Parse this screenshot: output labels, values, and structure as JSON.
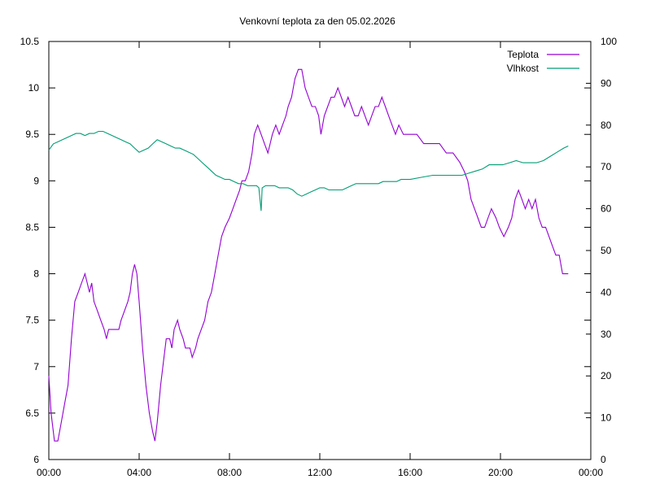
{
  "chart_data": {
    "type": "line",
    "title": "Venkovní teplota za den 05.02.2026",
    "xlabel": "",
    "ylabel": "",
    "y2label": "",
    "x_ticks": [
      "00:00",
      "04:00",
      "08:00",
      "12:00",
      "16:00",
      "20:00",
      "00:00"
    ],
    "xlim": [
      0,
      24
    ],
    "ylim": [
      6,
      10.5
    ],
    "y_ticks": [
      "6",
      "6.5",
      "7",
      "7.5",
      "8",
      "8.5",
      "9",
      "9.5",
      "10",
      "10.5"
    ],
    "y2lim": [
      0,
      100
    ],
    "y2_ticks": [
      "0",
      "10",
      "20",
      "30",
      "40",
      "50",
      "60",
      "70",
      "80",
      "90",
      "100"
    ],
    "grid": false,
    "legend_position": "top-right",
    "series": [
      {
        "name": "Teplota",
        "axis": "left",
        "color": "#9400d3",
        "points": [
          [
            0,
            6.9
          ],
          [
            0.1,
            6.5
          ],
          [
            0.25,
            6.2
          ],
          [
            0.4,
            6.2
          ],
          [
            0.55,
            6.4
          ],
          [
            0.7,
            6.6
          ],
          [
            0.85,
            6.8
          ],
          [
            1.0,
            7.3
          ],
          [
            1.15,
            7.7
          ],
          [
            1.3,
            7.8
          ],
          [
            1.45,
            7.9
          ],
          [
            1.6,
            8.0
          ],
          [
            1.7,
            7.9
          ],
          [
            1.8,
            7.8
          ],
          [
            1.9,
            7.9
          ],
          [
            2.0,
            7.7
          ],
          [
            2.15,
            7.6
          ],
          [
            2.3,
            7.5
          ],
          [
            2.45,
            7.4
          ],
          [
            2.55,
            7.3
          ],
          [
            2.65,
            7.4
          ],
          [
            2.9,
            7.4
          ],
          [
            3.1,
            7.4
          ],
          [
            3.2,
            7.5
          ],
          [
            3.35,
            7.6
          ],
          [
            3.5,
            7.7
          ],
          [
            3.6,
            7.8
          ],
          [
            3.7,
            8.0
          ],
          [
            3.8,
            8.1
          ],
          [
            3.9,
            8.0
          ],
          [
            4.0,
            7.7
          ],
          [
            4.15,
            7.2
          ],
          [
            4.3,
            6.8
          ],
          [
            4.45,
            6.5
          ],
          [
            4.6,
            6.3
          ],
          [
            4.7,
            6.2
          ],
          [
            4.8,
            6.4
          ],
          [
            4.95,
            6.8
          ],
          [
            5.1,
            7.1
          ],
          [
            5.2,
            7.3
          ],
          [
            5.35,
            7.3
          ],
          [
            5.45,
            7.2
          ],
          [
            5.55,
            7.4
          ],
          [
            5.7,
            7.5
          ],
          [
            5.8,
            7.4
          ],
          [
            5.95,
            7.3
          ],
          [
            6.05,
            7.2
          ],
          [
            6.25,
            7.2
          ],
          [
            6.35,
            7.1
          ],
          [
            6.5,
            7.2
          ],
          [
            6.6,
            7.3
          ],
          [
            6.75,
            7.4
          ],
          [
            6.9,
            7.5
          ],
          [
            7.05,
            7.7
          ],
          [
            7.2,
            7.8
          ],
          [
            7.35,
            8.0
          ],
          [
            7.5,
            8.2
          ],
          [
            7.65,
            8.4
          ],
          [
            7.8,
            8.5
          ],
          [
            8.0,
            8.6
          ],
          [
            8.15,
            8.7
          ],
          [
            8.3,
            8.8
          ],
          [
            8.45,
            8.9
          ],
          [
            8.55,
            9.0
          ],
          [
            8.7,
            9.0
          ],
          [
            8.85,
            9.1
          ],
          [
            9.0,
            9.3
          ],
          [
            9.1,
            9.5
          ],
          [
            9.25,
            9.6
          ],
          [
            9.4,
            9.5
          ],
          [
            9.55,
            9.4
          ],
          [
            9.7,
            9.3
          ],
          [
            9.8,
            9.4
          ],
          [
            9.9,
            9.5
          ],
          [
            10.05,
            9.6
          ],
          [
            10.2,
            9.5
          ],
          [
            10.35,
            9.6
          ],
          [
            10.5,
            9.7
          ],
          [
            10.6,
            9.8
          ],
          [
            10.75,
            9.9
          ],
          [
            10.9,
            10.1
          ],
          [
            11.05,
            10.2
          ],
          [
            11.2,
            10.2
          ],
          [
            11.35,
            10.0
          ],
          [
            11.5,
            9.9
          ],
          [
            11.65,
            9.8
          ],
          [
            11.8,
            9.8
          ],
          [
            11.95,
            9.7
          ],
          [
            12.05,
            9.5
          ],
          [
            12.2,
            9.7
          ],
          [
            12.35,
            9.8
          ],
          [
            12.5,
            9.9
          ],
          [
            12.65,
            9.9
          ],
          [
            12.8,
            10.0
          ],
          [
            12.95,
            9.9
          ],
          [
            13.1,
            9.8
          ],
          [
            13.25,
            9.9
          ],
          [
            13.4,
            9.8
          ],
          [
            13.55,
            9.7
          ],
          [
            13.7,
            9.7
          ],
          [
            13.85,
            9.8
          ],
          [
            14.0,
            9.7
          ],
          [
            14.15,
            9.6
          ],
          [
            14.3,
            9.7
          ],
          [
            14.45,
            9.8
          ],
          [
            14.6,
            9.8
          ],
          [
            14.75,
            9.9
          ],
          [
            14.9,
            9.8
          ],
          [
            15.05,
            9.7
          ],
          [
            15.2,
            9.6
          ],
          [
            15.35,
            9.5
          ],
          [
            15.5,
            9.6
          ],
          [
            15.7,
            9.5
          ],
          [
            16.0,
            9.5
          ],
          [
            16.3,
            9.5
          ],
          [
            16.6,
            9.4
          ],
          [
            17.0,
            9.4
          ],
          [
            17.3,
            9.4
          ],
          [
            17.6,
            9.3
          ],
          [
            17.9,
            9.3
          ],
          [
            18.2,
            9.2
          ],
          [
            18.4,
            9.1
          ],
          [
            18.55,
            9.0
          ],
          [
            18.7,
            8.8
          ],
          [
            18.85,
            8.7
          ],
          [
            19.0,
            8.6
          ],
          [
            19.15,
            8.5
          ],
          [
            19.3,
            8.5
          ],
          [
            19.45,
            8.6
          ],
          [
            19.6,
            8.7
          ],
          [
            19.8,
            8.6
          ],
          [
            19.95,
            8.5
          ],
          [
            20.15,
            8.4
          ],
          [
            20.35,
            8.5
          ],
          [
            20.5,
            8.6
          ],
          [
            20.65,
            8.8
          ],
          [
            20.8,
            8.9
          ],
          [
            20.95,
            8.8
          ],
          [
            21.1,
            8.7
          ],
          [
            21.25,
            8.8
          ],
          [
            21.4,
            8.7
          ],
          [
            21.55,
            8.8
          ],
          [
            21.7,
            8.6
          ],
          [
            21.85,
            8.5
          ],
          [
            22.0,
            8.5
          ],
          [
            22.15,
            8.4
          ],
          [
            22.3,
            8.3
          ],
          [
            22.45,
            8.2
          ],
          [
            22.6,
            8.2
          ],
          [
            22.75,
            8.0
          ],
          [
            22.9,
            8.0
          ],
          [
            23.0,
            8.0
          ]
        ]
      },
      {
        "name": "Vlhkost",
        "axis": "right",
        "color": "#009e73",
        "points": [
          [
            0,
            74
          ],
          [
            0.2,
            75.5
          ],
          [
            0.4,
            76
          ],
          [
            0.6,
            76.5
          ],
          [
            0.8,
            77
          ],
          [
            1.0,
            77.5
          ],
          [
            1.2,
            78
          ],
          [
            1.4,
            78
          ],
          [
            1.6,
            77.5
          ],
          [
            1.8,
            78
          ],
          [
            2.0,
            78
          ],
          [
            2.2,
            78.5
          ],
          [
            2.4,
            78.5
          ],
          [
            2.6,
            78
          ],
          [
            2.8,
            77.5
          ],
          [
            3.0,
            77
          ],
          [
            3.2,
            76.5
          ],
          [
            3.4,
            76
          ],
          [
            3.6,
            75.5
          ],
          [
            3.8,
            74.5
          ],
          [
            4.0,
            73.5
          ],
          [
            4.2,
            74
          ],
          [
            4.4,
            74.5
          ],
          [
            4.6,
            75.5
          ],
          [
            4.8,
            76.5
          ],
          [
            5.0,
            76
          ],
          [
            5.2,
            75.5
          ],
          [
            5.4,
            75
          ],
          [
            5.6,
            74.5
          ],
          [
            5.8,
            74.5
          ],
          [
            6.0,
            74
          ],
          [
            6.2,
            73.5
          ],
          [
            6.4,
            73
          ],
          [
            6.6,
            72
          ],
          [
            6.8,
            71
          ],
          [
            7.0,
            70
          ],
          [
            7.2,
            69
          ],
          [
            7.4,
            68
          ],
          [
            7.6,
            67.5
          ],
          [
            7.8,
            67
          ],
          [
            8.0,
            67
          ],
          [
            8.2,
            66.5
          ],
          [
            8.4,
            66
          ],
          [
            8.6,
            66
          ],
          [
            8.8,
            65.5
          ],
          [
            9.0,
            65.5
          ],
          [
            9.2,
            65.5
          ],
          [
            9.3,
            65
          ],
          [
            9.4,
            59.5
          ],
          [
            9.45,
            65
          ],
          [
            9.6,
            65.5
          ],
          [
            9.8,
            65.5
          ],
          [
            10.0,
            65.5
          ],
          [
            10.2,
            65
          ],
          [
            10.4,
            65
          ],
          [
            10.6,
            65
          ],
          [
            10.8,
            64.5
          ],
          [
            11.0,
            63.5
          ],
          [
            11.2,
            63
          ],
          [
            11.4,
            63.5
          ],
          [
            11.6,
            64
          ],
          [
            11.8,
            64.5
          ],
          [
            12.0,
            65
          ],
          [
            12.2,
            65
          ],
          [
            12.4,
            64.5
          ],
          [
            12.6,
            64.5
          ],
          [
            12.8,
            64.5
          ],
          [
            13.0,
            64.5
          ],
          [
            13.2,
            65
          ],
          [
            13.4,
            65.5
          ],
          [
            13.6,
            66
          ],
          [
            13.8,
            66
          ],
          [
            14.0,
            66
          ],
          [
            14.2,
            66
          ],
          [
            14.4,
            66
          ],
          [
            14.6,
            66
          ],
          [
            14.8,
            66.5
          ],
          [
            15.0,
            66.5
          ],
          [
            15.2,
            66.5
          ],
          [
            15.4,
            66.5
          ],
          [
            15.6,
            67
          ],
          [
            15.8,
            67
          ],
          [
            16.0,
            67
          ],
          [
            16.5,
            67.5
          ],
          [
            17.0,
            68
          ],
          [
            17.5,
            68
          ],
          [
            18.0,
            68
          ],
          [
            18.3,
            68
          ],
          [
            18.6,
            68.5
          ],
          [
            18.9,
            69
          ],
          [
            19.2,
            69.5
          ],
          [
            19.5,
            70.5
          ],
          [
            19.8,
            70.5
          ],
          [
            20.1,
            70.5
          ],
          [
            20.4,
            71
          ],
          [
            20.7,
            71.5
          ],
          [
            21.0,
            71
          ],
          [
            21.3,
            71
          ],
          [
            21.6,
            71
          ],
          [
            21.9,
            71.5
          ],
          [
            22.2,
            72.5
          ],
          [
            22.5,
            73.5
          ],
          [
            22.8,
            74.5
          ],
          [
            23.0,
            75
          ]
        ]
      }
    ]
  }
}
